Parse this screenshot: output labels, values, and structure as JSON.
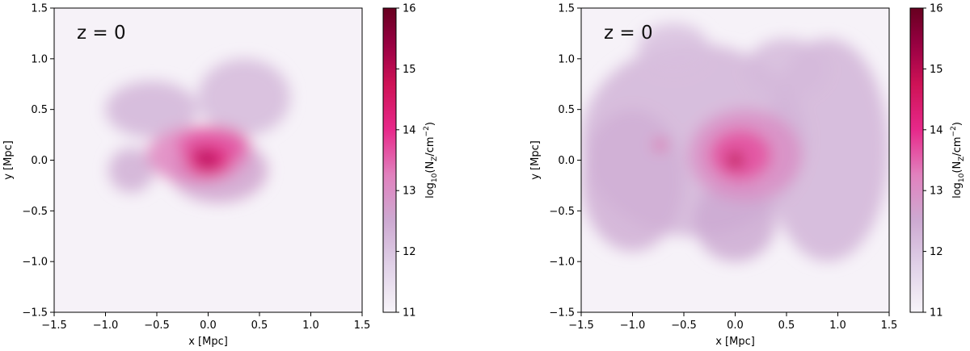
{
  "figure": {
    "colorbar_label_main": "log",
    "colorbar_label_sub": "10",
    "colorbar_label_rest": "(N",
    "colorbar_label_z": "Z",
    "colorbar_label_unit": "/cm",
    "colorbar_label_exp": "−2",
    "colorbar_label_close": ")"
  },
  "chart_data": [
    {
      "type": "heatmap",
      "title": "",
      "annotation": "z = 0",
      "xlabel": "x [Mpc]",
      "ylabel": "y [Mpc]",
      "xlim": [
        -1.5,
        1.5
      ],
      "ylim": [
        -1.5,
        1.5
      ],
      "xticks": [
        "−1.5",
        "−1.0",
        "−0.5",
        "0.0",
        "0.5",
        "1.0",
        "1.5"
      ],
      "yticks": [
        "−1.5",
        "−1.0",
        "−0.5",
        "0.0",
        "0.5",
        "1.0",
        "1.5"
      ],
      "colorbar": {
        "label": "log10(NZ/cm−2)",
        "range": [
          11,
          16
        ],
        "ticks": [
          "11",
          "12",
          "13",
          "14",
          "15",
          "16"
        ],
        "colormap": "PuRd"
      },
      "background_color": "#f6f2f8",
      "blobs": [
        {
          "x": -0.55,
          "y": 0.5,
          "rx": 0.45,
          "ry": 0.28,
          "value": 12.3
        },
        {
          "x": 0.35,
          "y": 0.62,
          "rx": 0.45,
          "ry": 0.38,
          "value": 12.2
        },
        {
          "x": -0.75,
          "y": -0.1,
          "rx": 0.22,
          "ry": 0.22,
          "value": 12.4
        },
        {
          "x": 0.1,
          "y": -0.1,
          "rx": 0.48,
          "ry": 0.32,
          "value": 12.6
        },
        {
          "x": -0.1,
          "y": 0.05,
          "rx": 0.5,
          "ry": 0.28,
          "value": 13.2
        },
        {
          "x": 0.05,
          "y": 0.15,
          "rx": 0.35,
          "ry": 0.18,
          "value": 13.6
        },
        {
          "x": 0.0,
          "y": 0.0,
          "rx": 0.22,
          "ry": 0.16,
          "value": 14.2
        },
        {
          "x": 0.0,
          "y": 0.0,
          "rx": 0.08,
          "ry": 0.07,
          "value": 15.2
        },
        {
          "x": -0.08,
          "y": 0.07,
          "rx": 0.03,
          "ry": 0.03,
          "value": 15.8
        }
      ]
    },
    {
      "type": "heatmap",
      "title": "",
      "annotation": "z = 0",
      "xlabel": "x [Mpc]",
      "ylabel": "y [Mpc]",
      "xlim": [
        -1.5,
        1.5
      ],
      "ylim": [
        -1.5,
        1.5
      ],
      "xticks": [
        "−1.5",
        "−1.0",
        "−0.5",
        "0.0",
        "0.5",
        "1.0",
        "1.5"
      ],
      "yticks": [
        "−1.5",
        "−1.0",
        "−0.5",
        "0.0",
        "0.5",
        "1.0",
        "1.5"
      ],
      "colorbar": {
        "label": "log10(NZ/cm−2)",
        "range": [
          11,
          16
        ],
        "ticks": [
          "11",
          "12",
          "13",
          "14",
          "15",
          "16"
        ],
        "colormap": "PuRd"
      },
      "background_color": "#f6f2f8",
      "blobs": [
        {
          "x": -0.4,
          "y": 0.2,
          "rx": 1.1,
          "ry": 0.95,
          "value": 12.3
        },
        {
          "x": 0.9,
          "y": 0.1,
          "rx": 0.6,
          "ry": 1.1,
          "value": 12.3
        },
        {
          "x": -1.0,
          "y": -0.2,
          "rx": 0.5,
          "ry": 0.7,
          "value": 12.4
        },
        {
          "x": 0.5,
          "y": 0.9,
          "rx": 0.4,
          "ry": 0.3,
          "value": 12.2
        },
        {
          "x": -0.6,
          "y": 1.1,
          "rx": 0.35,
          "ry": 0.25,
          "value": 12.1
        },
        {
          "x": 0.0,
          "y": -0.6,
          "rx": 0.4,
          "ry": 0.4,
          "value": 12.5
        },
        {
          "x": 0.1,
          "y": 0.05,
          "rx": 0.55,
          "ry": 0.45,
          "value": 13.0
        },
        {
          "x": 0.05,
          "y": 0.05,
          "rx": 0.3,
          "ry": 0.25,
          "value": 13.7
        },
        {
          "x": 0.0,
          "y": 0.0,
          "rx": 0.08,
          "ry": 0.09,
          "value": 14.8
        },
        {
          "x": 0.0,
          "y": 0.0,
          "rx": 0.03,
          "ry": 0.04,
          "value": 15.8
        },
        {
          "x": -0.73,
          "y": 0.15,
          "rx": 0.06,
          "ry": 0.05,
          "value": 13.8
        }
      ]
    }
  ]
}
